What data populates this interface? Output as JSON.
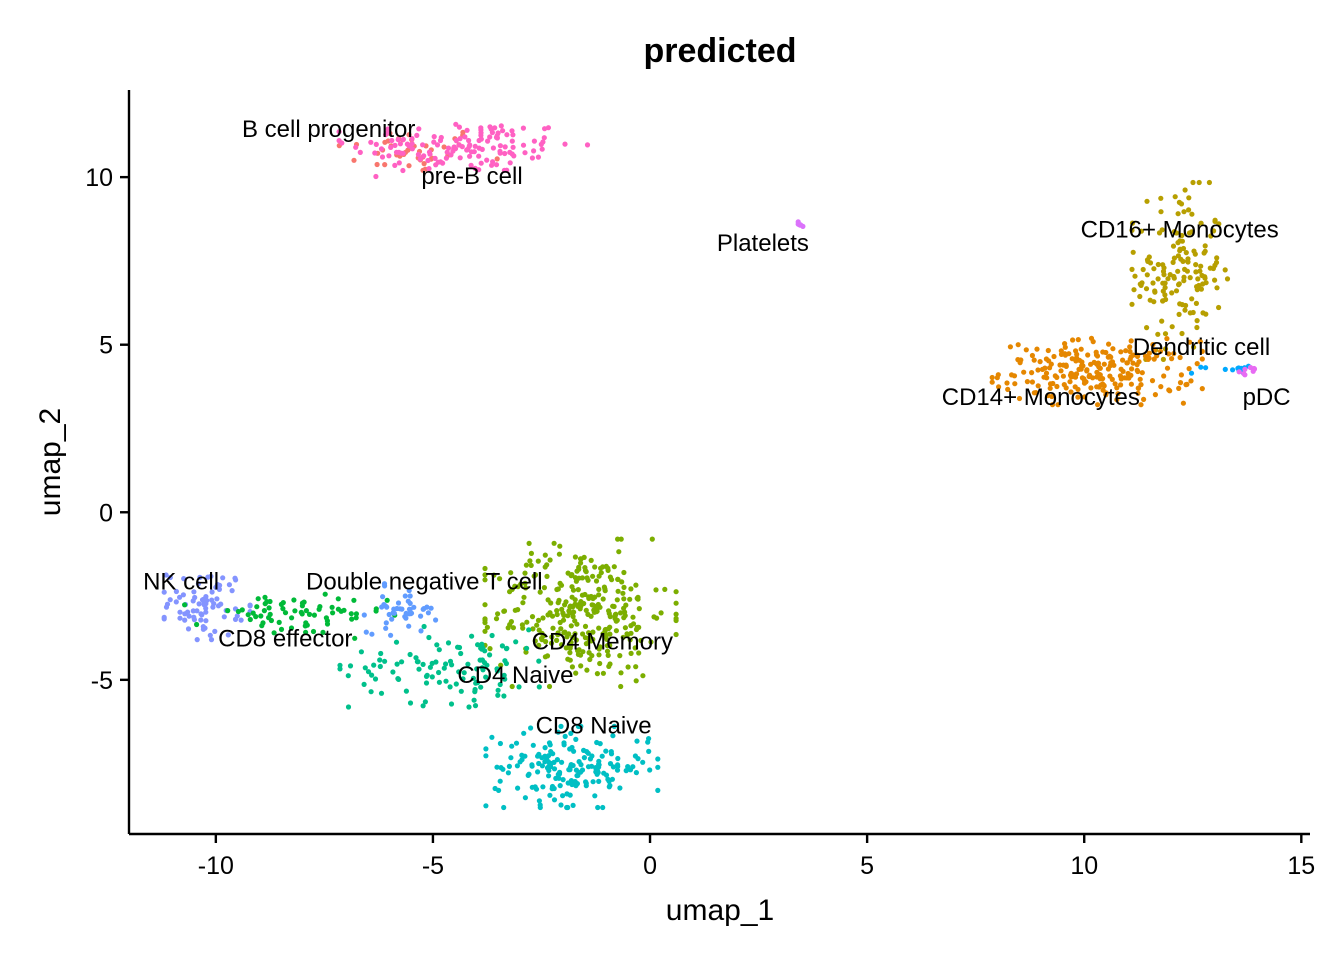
{
  "chart_data": {
    "type": "scatter",
    "title": "predicted",
    "xlabel": "umap_1",
    "ylabel": "umap_2",
    "xlim": [
      -12,
      15.2
    ],
    "ylim": [
      -9.6,
      12.6
    ],
    "xticks": [
      -10,
      -5,
      0,
      5,
      10,
      15
    ],
    "yticks": [
      -5,
      0,
      5,
      10
    ],
    "xtick_labels": [
      "-10",
      "-5",
      "0",
      "5",
      "10",
      "15"
    ],
    "ytick_labels": [
      "-5",
      "0",
      "5",
      "10"
    ],
    "grid": false,
    "legend": "none",
    "point_size": 2.6,
    "series": [
      {
        "name": "B cell progenitor",
        "color": "#F8766D",
        "center": [
          -5.5,
          10.8
        ],
        "spread": [
          0.9,
          0.35
        ],
        "n": 40
      },
      {
        "name": "pre-B cell",
        "color": "#FF61C3",
        "center": [
          -4.3,
          10.9
        ],
        "spread": [
          1.3,
          0.4
        ],
        "n": 140
      },
      {
        "name": "Platelets",
        "color": "#DB72FB",
        "center": [
          3.45,
          8.6
        ],
        "spread": [
          0.05,
          0.05
        ],
        "n": 6
      },
      {
        "name": "CD16+ Monocytes",
        "color": "#B79F00",
        "center": [
          12.2,
          7.2
        ],
        "spread": [
          0.5,
          1.2
        ],
        "n": 150
      },
      {
        "name": "CD14+ Monocytes",
        "color": "#E58700",
        "center": [
          10.3,
          4.2
        ],
        "spread": [
          1.1,
          0.45
        ],
        "n": 230
      },
      {
        "name": "Dendritic cell",
        "color": "#00A9FF",
        "center": [
          13.2,
          4.3
        ],
        "spread": [
          0.35,
          0.08
        ],
        "n": 12
      },
      {
        "name": "pDC",
        "color": "#E76BF3",
        "center": [
          13.8,
          4.2
        ],
        "spread": [
          0.15,
          0.06
        ],
        "n": 8
      },
      {
        "name": "NK cell",
        "color": "#8494FF",
        "center": [
          -10.2,
          -2.7
        ],
        "spread": [
          0.45,
          0.5
        ],
        "n": 80
      },
      {
        "name": "CD8 effector",
        "color": "#00BA38",
        "center": [
          -8.3,
          -3.1
        ],
        "spread": [
          1.1,
          0.3
        ],
        "n": 70
      },
      {
        "name": "Double negative T cell",
        "color": "#619CFF",
        "center": [
          -5.7,
          -2.9
        ],
        "spread": [
          0.4,
          0.35
        ],
        "n": 45
      },
      {
        "name": "CD4 Memory",
        "color": "#7CAE00",
        "center": [
          -1.6,
          -3.0
        ],
        "spread": [
          1.0,
          1.0
        ],
        "n": 320
      },
      {
        "name": "CD4 Naive",
        "color": "#00C08B",
        "center": [
          -4.5,
          -4.6
        ],
        "spread": [
          1.2,
          0.55
        ],
        "n": 110
      },
      {
        "name": "CD8 Naive",
        "color": "#00BFC4",
        "center": [
          -1.8,
          -7.6
        ],
        "spread": [
          0.9,
          0.55
        ],
        "n": 180
      }
    ],
    "labels": [
      {
        "text": "B cell progenitor",
        "x": -7.4,
        "y": 11.2
      },
      {
        "text": "pre-B cell",
        "x": -4.1,
        "y": 9.8
      },
      {
        "text": "Platelets",
        "x": 2.6,
        "y": 7.8
      },
      {
        "text": "CD16+ Monocytes",
        "x": 12.2,
        "y": 8.2
      },
      {
        "text": "Dendritic cell",
        "x": 12.7,
        "y": 4.7
      },
      {
        "text": "pDC",
        "x": 14.2,
        "y": 3.2
      },
      {
        "text": "CD14+ Monocytes",
        "x": 9.0,
        "y": 3.2
      },
      {
        "text": "NK cell",
        "x": -10.8,
        "y": -2.3
      },
      {
        "text": "Double negative T cell",
        "x": -5.2,
        "y": -2.3
      },
      {
        "text": "CD8 effector",
        "x": -8.4,
        "y": -4.0
      },
      {
        "text": "CD4 Memory",
        "x": -1.1,
        "y": -4.1
      },
      {
        "text": "CD4 Naive",
        "x": -3.1,
        "y": -5.1
      },
      {
        "text": "CD8 Naive",
        "x": -1.3,
        "y": -6.6
      }
    ]
  }
}
